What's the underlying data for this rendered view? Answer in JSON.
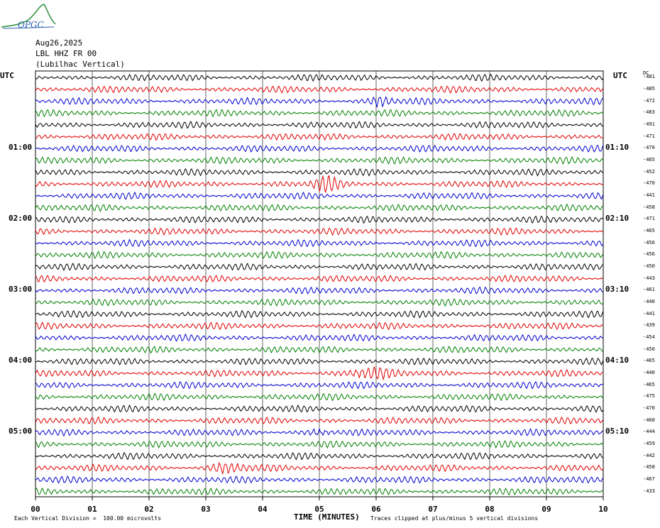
{
  "logo": {
    "text": "OPGC"
  },
  "header": {
    "date": "Aug26,2025",
    "station": "LBL HHZ FR 00",
    "description": "(Lubilhac Vertical)"
  },
  "utc_left": "UTC",
  "utc_right": "UTC",
  "dc_header": "DC",
  "footer": {
    "scale": "Each Vertical Division =  100.00 microvolts",
    "clip": "Traces clipped at plus/minus 5 vertical divisions",
    "x_title": "TIME (MINUTES)"
  },
  "chart_data": {
    "type": "line",
    "title": "",
    "xlabel": "TIME (MINUTES)",
    "ylabel": "",
    "xlim": [
      0,
      10
    ],
    "x_ticks": [
      "00",
      "01",
      "02",
      "03",
      "04",
      "05",
      "06",
      "07",
      "08",
      "09",
      "10"
    ],
    "trace_colors": [
      "#000000",
      "#e00000",
      "#0000d0",
      "#008000"
    ],
    "left_time_labels": [
      {
        "row": 6,
        "text": "01:00"
      },
      {
        "row": 12,
        "text": "02:00"
      },
      {
        "row": 18,
        "text": "03:00"
      },
      {
        "row": 24,
        "text": "04:00"
      },
      {
        "row": 30,
        "text": "05:00"
      }
    ],
    "right_time_labels": [
      {
        "row": 6,
        "text": "01:10"
      },
      {
        "row": 12,
        "text": "02:10"
      },
      {
        "row": 18,
        "text": "03:10"
      },
      {
        "row": 24,
        "text": "04:10"
      },
      {
        "row": 30,
        "text": "05:10"
      }
    ],
    "dc_offsets": [
      "-481",
      "-485",
      "-472",
      "-483",
      "-491",
      "-471",
      "-470",
      "-465",
      "-452",
      "-470",
      "-441",
      "-458",
      "-471",
      "-465",
      "-456",
      "-456",
      "-450",
      "-443",
      "-461",
      "-440",
      "-441",
      "-439",
      "-454",
      "-450",
      "-465",
      "-440",
      "-465",
      "-475",
      "-470",
      "-460",
      "-444",
      "-459",
      "-442",
      "-458",
      "-467",
      "-433"
    ],
    "bursts": [
      {
        "row": 2,
        "x": 6.1,
        "w": 0.25
      },
      {
        "row": 9,
        "x": 5.1,
        "w": 0.3
      },
      {
        "row": 25,
        "x": 5.8,
        "w": 0.5
      },
      {
        "row": 30,
        "x": 5.0,
        "w": 0.3
      },
      {
        "row": 33,
        "x": 3.4,
        "w": 0.4
      }
    ]
  }
}
